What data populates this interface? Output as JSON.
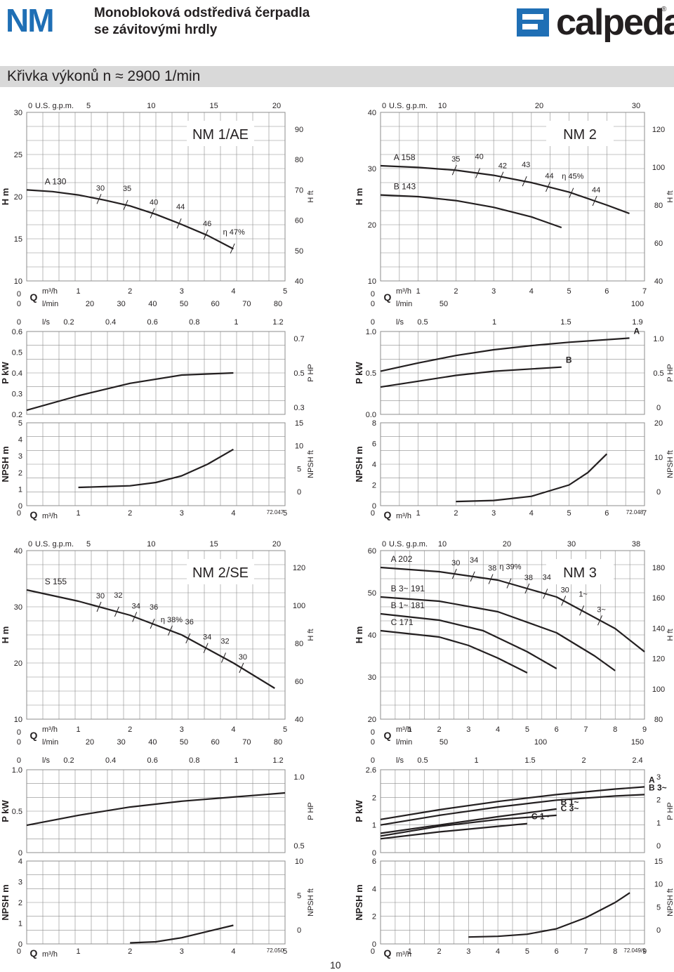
{
  "header": {
    "logo": "NM",
    "title_line1": "Monobloková odstředivá čerpadla",
    "title_line2": "se závitovými hrdly",
    "brand": "calpeda",
    "reg_mark": "®"
  },
  "band": {
    "text": "Křivka výkonů n ≈ 2900 1/min"
  },
  "page_number": "10",
  "axis_labels": {
    "H_m": "H m",
    "H_ft": "H ft",
    "P_kW": "P kW",
    "P_HP": "P HP",
    "NPSH_m": "NPSH m",
    "NPSH_ft": "NPSH ft",
    "Q": "Q",
    "m3h": "m³/h",
    "lmin": "l/min",
    "ls": "l/s",
    "usgpm": "U.S. g.p.m."
  },
  "colors": {
    "grid": "#8c8c8c",
    "curve": "#231f20",
    "band": "#d9d9d9",
    "logo_blue": "#1f6fb5"
  },
  "chart_data": [
    {
      "id": "NM1",
      "model": "NM 1/AE",
      "code": "72.047",
      "type": "line",
      "top_ticks": {
        "usgpm": [
          "0",
          "5",
          "10",
          "15",
          "20"
        ]
      },
      "q_m3h": {
        "ticks": [
          "0",
          "1",
          "2",
          "3",
          "4",
          "5"
        ],
        "lim": [
          0,
          5
        ]
      },
      "q_lmin": [
        "0",
        "20",
        "30",
        "40",
        "50",
        "60",
        "70",
        "80"
      ],
      "q_ls": [
        "0",
        "0.2",
        "0.4",
        "0.6",
        "0.8",
        "1",
        "1.2"
      ],
      "H": {
        "lim": [
          10,
          30
        ],
        "ticks": [
          "10",
          "15",
          "20",
          "25",
          "30"
        ],
        "ft_ticks": [
          "40",
          "50",
          "60",
          "70",
          "80",
          "90"
        ],
        "curves": [
          {
            "name": "A",
            "label": "A",
            "dia": "130",
            "points": [
              [
                0,
                20.8
              ],
              [
                0.5,
                20.6
              ],
              [
                1,
                20.2
              ],
              [
                1.5,
                19.6
              ],
              [
                2,
                18.9
              ],
              [
                2.5,
                17.9
              ],
              [
                3,
                16.7
              ],
              [
                3.5,
                15.4
              ],
              [
                4,
                13.8
              ]
            ]
          }
        ],
        "eff_labels": [
          "30",
          "35",
          "40",
          "44",
          "46",
          "η 47%"
        ]
      },
      "P": {
        "lim": [
          0.2,
          0.6
        ],
        "ticks": [
          "0.2",
          "0.3",
          "0.4",
          "0.5",
          "0.6"
        ],
        "hp_ticks": [
          "0.3",
          "0.5",
          "0.7"
        ],
        "curves": [
          {
            "name": "A",
            "points": [
              [
                0,
                0.22
              ],
              [
                1,
                0.29
              ],
              [
                2,
                0.35
              ],
              [
                3,
                0.39
              ],
              [
                4,
                0.4
              ]
            ]
          }
        ]
      },
      "NPSH": {
        "lim": [
          0,
          5
        ],
        "ticks": [
          "0",
          "1",
          "2",
          "3",
          "4",
          "5"
        ],
        "ft_ticks": [
          "0",
          "5",
          "10",
          "15"
        ],
        "curve": [
          [
            1,
            1.1
          ],
          [
            1.5,
            1.15
          ],
          [
            2,
            1.2
          ],
          [
            2.5,
            1.4
          ],
          [
            3,
            1.8
          ],
          [
            3.5,
            2.5
          ],
          [
            4,
            3.4
          ]
        ]
      }
    },
    {
      "id": "NM2",
      "model": "NM 2",
      "code": "72.048",
      "type": "line",
      "top_ticks": {
        "usgpm": [
          "0",
          "10",
          "20",
          "30"
        ]
      },
      "q_m3h": {
        "ticks": [
          "0",
          "1",
          "2",
          "3",
          "4",
          "5",
          "6",
          "7"
        ],
        "lim": [
          0,
          7
        ]
      },
      "q_lmin": [
        "0",
        "50",
        "100"
      ],
      "q_ls": [
        "0",
        "0.5",
        "1",
        "1.5",
        "1.9"
      ],
      "H": {
        "lim": [
          10,
          40
        ],
        "ticks": [
          "10",
          "20",
          "30",
          "40"
        ],
        "ft_ticks": [
          "40",
          "60",
          "80",
          "100",
          "120"
        ],
        "curves": [
          {
            "name": "A",
            "label": "A",
            "dia": "158",
            "points": [
              [
                0,
                30.5
              ],
              [
                1,
                30.2
              ],
              [
                2,
                29.7
              ],
              [
                3,
                28.8
              ],
              [
                4,
                27.5
              ],
              [
                5,
                25.8
              ],
              [
                6,
                23.5
              ],
              [
                6.6,
                22
              ]
            ]
          },
          {
            "name": "B",
            "label": "B",
            "dia": "143",
            "points": [
              [
                0,
                25.3
              ],
              [
                1,
                25.0
              ],
              [
                2,
                24.3
              ],
              [
                3,
                23.1
              ],
              [
                4,
                21.4
              ],
              [
                4.8,
                19.5
              ]
            ]
          }
        ],
        "eff_labels": [
          "35",
          "40",
          "42",
          "43",
          "44",
          "η 45%",
          "44"
        ]
      },
      "P": {
        "lim": [
          0,
          1.0
        ],
        "ticks": [
          "0.0",
          "0.5",
          "1.0"
        ],
        "hp_ticks": [
          "0",
          "0.5",
          "1.0"
        ],
        "curves": [
          {
            "name": "A",
            "label": "A",
            "points": [
              [
                0,
                0.52
              ],
              [
                1,
                0.62
              ],
              [
                2,
                0.71
              ],
              [
                3,
                0.78
              ],
              [
                4,
                0.83
              ],
              [
                5,
                0.87
              ],
              [
                6.6,
                0.92
              ]
            ]
          },
          {
            "name": "B",
            "label": "B",
            "points": [
              [
                0,
                0.33
              ],
              [
                1,
                0.4
              ],
              [
                2,
                0.47
              ],
              [
                3,
                0.52
              ],
              [
                4.8,
                0.57
              ]
            ]
          }
        ]
      },
      "NPSH": {
        "lim": [
          0,
          8
        ],
        "ticks": [
          "0",
          "2",
          "4",
          "6",
          "8"
        ],
        "ft_ticks": [
          "0",
          "10",
          "20"
        ],
        "curve": [
          [
            2,
            0.4
          ],
          [
            3,
            0.5
          ],
          [
            4,
            0.9
          ],
          [
            5,
            2.0
          ],
          [
            5.5,
            3.2
          ],
          [
            6,
            5.0
          ]
        ]
      }
    },
    {
      "id": "NM2SE",
      "model": "NM 2/SE",
      "code": "72.050",
      "type": "line",
      "top_ticks": {
        "usgpm": [
          "0",
          "5",
          "10",
          "15",
          "20"
        ]
      },
      "q_m3h": {
        "ticks": [
          "0",
          "1",
          "2",
          "3",
          "4",
          "5"
        ],
        "lim": [
          0,
          5
        ]
      },
      "q_lmin": [
        "0",
        "20",
        "30",
        "40",
        "50",
        "60",
        "70",
        "80"
      ],
      "q_ls": [
        "0",
        "0.2",
        "0.4",
        "0.6",
        "0.8",
        "1",
        "1.2"
      ],
      "H": {
        "lim": [
          10,
          40
        ],
        "ticks": [
          "10",
          "20",
          "30",
          "40"
        ],
        "ft_ticks": [
          "40",
          "60",
          "80",
          "100",
          "120"
        ],
        "curves": [
          {
            "name": "S",
            "label": "S",
            "dia": "155",
            "points": [
              [
                0,
                33.0
              ],
              [
                1,
                31.0
              ],
              [
                2,
                28.5
              ],
              [
                3,
                25.0
              ],
              [
                4,
                20.0
              ],
              [
                4.8,
                15.5
              ]
            ]
          }
        ],
        "eff_labels": [
          "30",
          "32",
          "34",
          "36",
          "η 38%",
          "36",
          "34",
          "32",
          "30"
        ]
      },
      "P": {
        "lim": [
          0,
          1.0
        ],
        "ticks": [
          "0",
          "0.5",
          "1.0"
        ],
        "hp_ticks": [
          "0.5",
          "1.0"
        ],
        "curves": [
          {
            "name": "S",
            "points": [
              [
                0,
                0.33
              ],
              [
                1,
                0.45
              ],
              [
                2,
                0.55
              ],
              [
                3,
                0.62
              ],
              [
                4,
                0.67
              ],
              [
                5,
                0.72
              ]
            ]
          }
        ]
      },
      "NPSH": {
        "lim": [
          0,
          4
        ],
        "ticks": [
          "0",
          "1",
          "2",
          "3",
          "4"
        ],
        "ft_ticks": [
          "0",
          "5",
          "10"
        ],
        "curve": [
          [
            2,
            0.05
          ],
          [
            2.5,
            0.1
          ],
          [
            3,
            0.3
          ],
          [
            3.5,
            0.6
          ],
          [
            4,
            0.9
          ]
        ]
      }
    },
    {
      "id": "NM3",
      "model": "NM 3",
      "code": "72.049/1",
      "type": "line",
      "top_ticks": {
        "usgpm": [
          "0",
          "10",
          "20",
          "30",
          "38"
        ]
      },
      "q_m3h": {
        "ticks": [
          "0",
          "1",
          "2",
          "3",
          "4",
          "5",
          "6",
          "7",
          "8",
          "9"
        ],
        "lim": [
          0,
          9
        ]
      },
      "q_lmin": [
        "0",
        "50",
        "100",
        "150"
      ],
      "q_ls": [
        "0",
        "0.5",
        "1",
        "1.5",
        "2",
        "2.4"
      ],
      "H": {
        "lim": [
          20,
          60
        ],
        "ticks": [
          "20",
          "30",
          "40",
          "50",
          "60"
        ],
        "ft_ticks": [
          "80",
          "100",
          "120",
          "140",
          "160",
          "180"
        ],
        "curves": [
          {
            "name": "A",
            "label": "A",
            "dia": "202",
            "points": [
              [
                0,
                56.0
              ],
              [
                2,
                55.0
              ],
              [
                4,
                53.0
              ],
              [
                6,
                49.0
              ],
              [
                8,
                41.5
              ],
              [
                9,
                36.0
              ]
            ]
          },
          {
            "name": "B 3~",
            "label": "B 3~",
            "dia": "191",
            "points": [
              [
                0,
                49.0
              ],
              [
                2,
                48.0
              ],
              [
                4,
                45.5
              ],
              [
                6,
                40.5
              ],
              [
                7.3,
                35.0
              ],
              [
                8,
                31.5
              ]
            ]
          },
          {
            "name": "B 1~",
            "label": "B 1~",
            "dia": "181",
            "points": [
              [
                0,
                45.0
              ],
              [
                2,
                43.5
              ],
              [
                3.5,
                41.0
              ],
              [
                5,
                36.0
              ],
              [
                6,
                32.0
              ]
            ]
          },
          {
            "name": "C",
            "label": "C",
            "dia": "171",
            "points": [
              [
                0,
                41.0
              ],
              [
                2,
                39.5
              ],
              [
                3,
                37.5
              ],
              [
                4,
                34.5
              ],
              [
                5,
                31.0
              ]
            ]
          }
        ],
        "eff_labels": [
          "30",
          "34",
          "38",
          "η 39%",
          "38",
          "34",
          "30",
          "1~",
          "3~"
        ]
      },
      "P": {
        "lim": [
          0,
          3
        ],
        "ticks": [
          "0",
          "1",
          "2",
          "2.6"
        ],
        "hp_ticks": [
          "0",
          "1",
          "2",
          "3"
        ],
        "curves": [
          {
            "name": "A",
            "label": "A",
            "points": [
              [
                0,
                1.2
              ],
              [
                2,
                1.55
              ],
              [
                4,
                1.85
              ],
              [
                6,
                2.1
              ],
              [
                8,
                2.3
              ],
              [
                9,
                2.38
              ]
            ]
          },
          {
            "name": "B 3~",
            "label": "B 3~",
            "points": [
              [
                0,
                1.0
              ],
              [
                2,
                1.35
              ],
              [
                4,
                1.65
              ],
              [
                6,
                1.9
              ],
              [
                8,
                2.05
              ],
              [
                9,
                2.1
              ]
            ]
          },
          {
            "name": "B 1~",
            "label": "B 1~",
            "points": [
              [
                0,
                0.7
              ],
              [
                2,
                1.0
              ],
              [
                4,
                1.3
              ],
              [
                6,
                1.58
              ]
            ]
          },
          {
            "name": "C 3~",
            "label": "C 3~",
            "points": [
              [
                0,
                0.6
              ],
              [
                2,
                0.95
              ],
              [
                4,
                1.2
              ],
              [
                6,
                1.35
              ]
            ]
          },
          {
            "name": "C 1~",
            "label": "C 1~",
            "points": [
              [
                0,
                0.5
              ],
              [
                2,
                0.75
              ],
              [
                4,
                0.95
              ],
              [
                5,
                1.05
              ]
            ]
          }
        ]
      },
      "NPSH": {
        "lim": [
          0,
          6
        ],
        "ticks": [
          "0",
          "2",
          "4",
          "6"
        ],
        "ft_ticks": [
          "0",
          "5",
          "10",
          "15"
        ],
        "curve": [
          [
            3,
            0.5
          ],
          [
            4,
            0.55
          ],
          [
            5,
            0.7
          ],
          [
            6,
            1.1
          ],
          [
            7,
            1.9
          ],
          [
            8,
            3.0
          ],
          [
            8.5,
            3.7
          ]
        ]
      }
    }
  ]
}
